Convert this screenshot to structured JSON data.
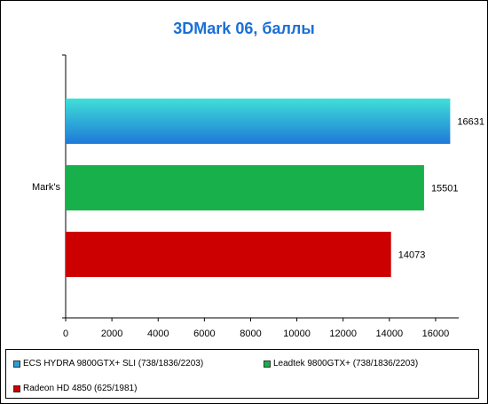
{
  "chart_data": {
    "type": "bar",
    "orientation": "horizontal",
    "title": "3DMark 06, баллы",
    "categories": [
      "Mark's"
    ],
    "series": [
      {
        "name": "ECS HYDRA 9800GTX+ SLI (738/1836/2203)",
        "values": [
          16631
        ],
        "color": "#2a9fd8",
        "gradient": [
          "#3fe0d8",
          "#1f78d8"
        ]
      },
      {
        "name": "Leadtek 9800GTX+ (738/1836/2203)",
        "values": [
          15501
        ],
        "color": "#18b04a"
      },
      {
        "name": "Radeon HD 4850 (625/1981)",
        "values": [
          14073
        ],
        "color": "#cc0000"
      }
    ],
    "xlim": [
      0,
      17000
    ],
    "xticks": [
      0,
      2000,
      4000,
      6000,
      8000,
      10000,
      12000,
      14000,
      16000
    ],
    "grid": false,
    "legend_position": "bottom"
  }
}
